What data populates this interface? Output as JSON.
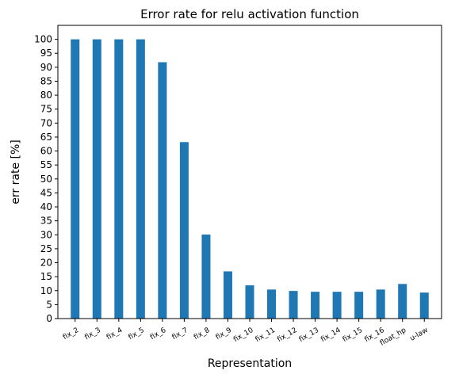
{
  "chart_data": {
    "type": "bar",
    "title": "Error rate for relu activation function",
    "xlabel": "Representation",
    "ylabel": "err rate [%]",
    "categories": [
      "fix_2",
      "fix_3",
      "fix_4",
      "fix_5",
      "fix_6",
      "fix_7",
      "fix_8",
      "fix_9",
      "fix_10",
      "fix_11",
      "fix_12",
      "fix_13",
      "fix_14",
      "fix_15",
      "fix_16",
      "float_hp",
      "u-law"
    ],
    "values": [
      100,
      100,
      100,
      100,
      91.8,
      63.2,
      30.1,
      16.9,
      11.9,
      10.4,
      9.9,
      9.6,
      9.6,
      9.6,
      10.4,
      12.4,
      9.3
    ],
    "yticks": [
      0,
      5,
      10,
      15,
      20,
      25,
      30,
      35,
      40,
      45,
      50,
      55,
      60,
      65,
      70,
      75,
      80,
      85,
      90,
      95,
      100
    ],
    "ylim": [
      0,
      105
    ],
    "grid": false,
    "legend": "none",
    "bar_color": "#1f77b4"
  }
}
